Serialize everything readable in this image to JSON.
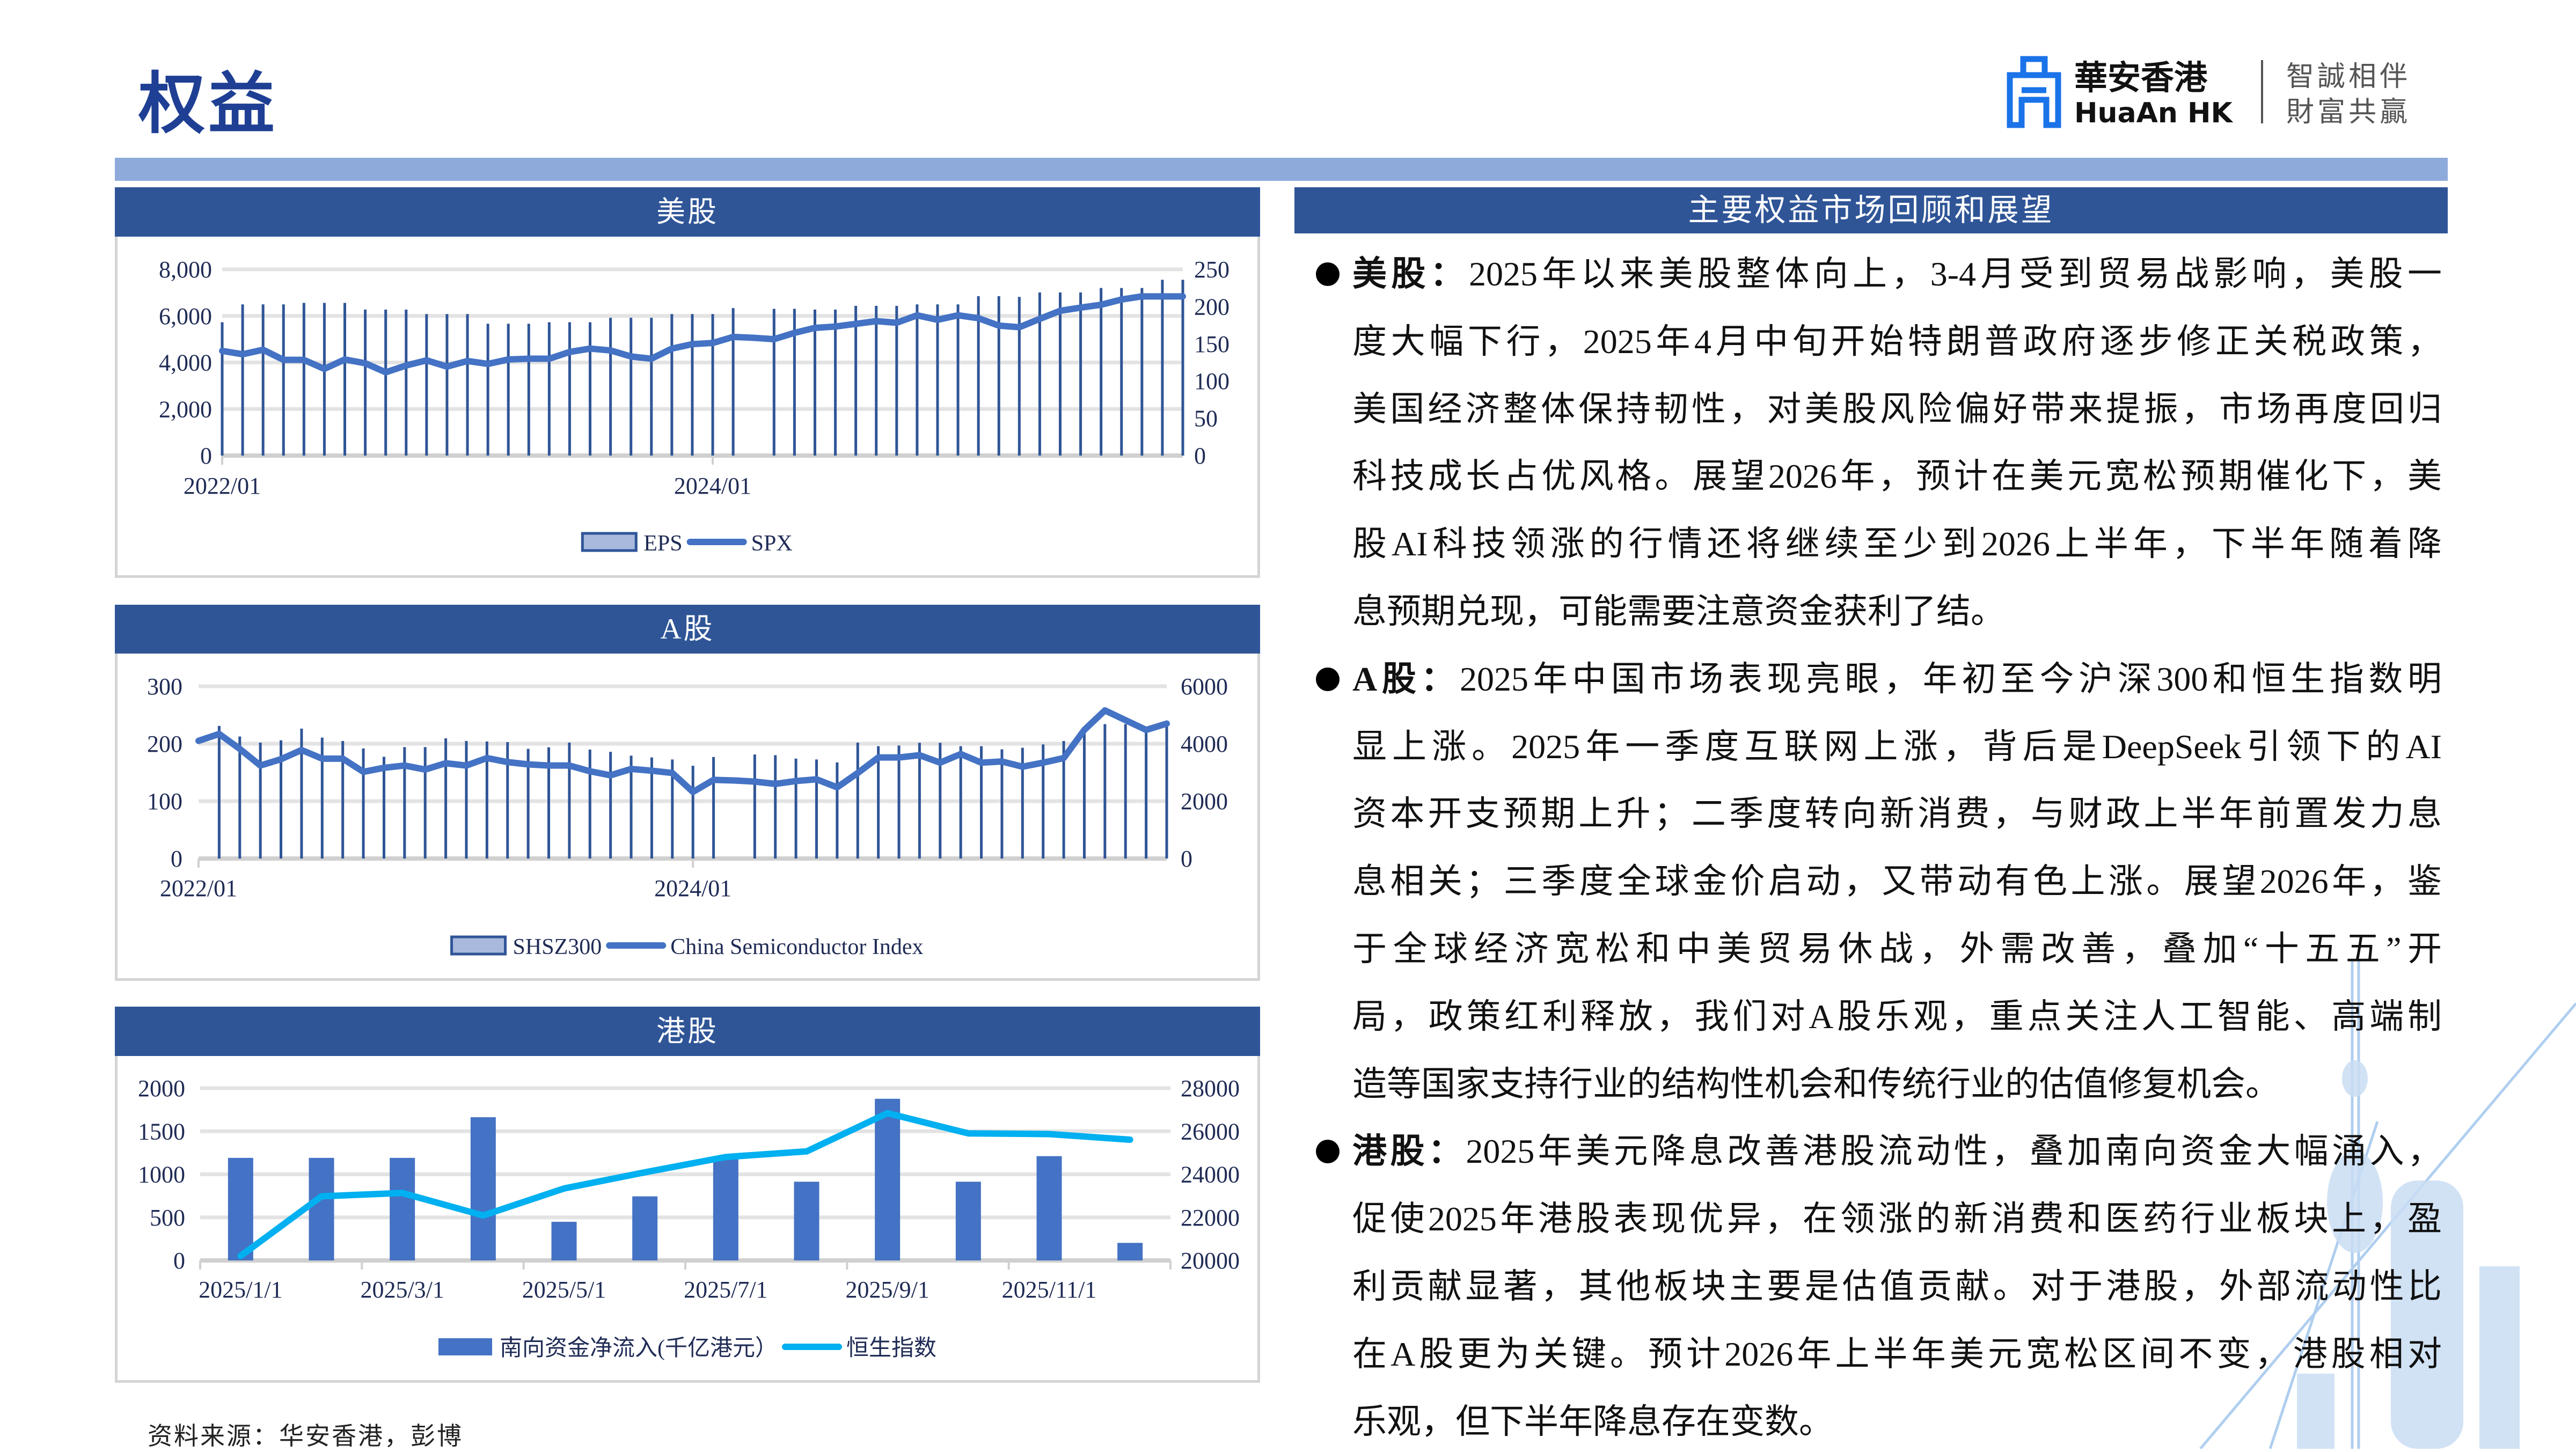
{
  "page": {
    "title": "权益",
    "source": "资料来源：华安香港，彭博"
  },
  "logo": {
    "name_cn": "華安香港",
    "name_en": "HuaAn HK",
    "slogan_line1": "智誠相伴",
    "slogan_line2": "財富共贏",
    "brand_color": "#1a73e8"
  },
  "colors": {
    "header": "#2f5597",
    "topbar": "#8eaadb",
    "bar": "#4472c4",
    "line": "#4472c4",
    "hsi_line": "#00b0f0",
    "bar_light": "#a9b9dd"
  },
  "panels": {
    "us": "美股",
    "a": "A股",
    "hk": "港股"
  },
  "commentary": {
    "heading": "主要权益市场回顾和展望",
    "us": {
      "label": "美股：",
      "lines": [
        "2025年以来美股整体向上，3-4月受到贸易战影响，美股一",
        "度大幅下行，2025年4月中旬开始特朗普政府逐步修正关税政策，",
        "美国经济整体保持韧性，对美股风险偏好带来提振，市场再度回归",
        "科技成长占优风格。展望2026年，预计在美元宽松预期催化下，美",
        "股AI科技领涨的行情还将继续至少到2026上半年，下半年随着降",
        "息预期兑现，可能需要注意资金获利了结。"
      ]
    },
    "a": {
      "label": "A股：",
      "lines": [
        "2025年中国市场表现亮眼，年初至今沪深300和恒生指数明",
        "显上涨。2025年一季度互联网上涨，背后是DeepSeek引领下的AI",
        "资本开支预期上升；二季度转向新消费，与财政上半年前置发力息",
        "息相关；三季度全球金价启动，又带动有色上涨。展望2026年，鉴",
        "于全球经济宽松和中美贸易休战，外需改善，叠加“十五五”开",
        "局，政策红利释放，我们对A股乐观，重点关注人工智能、高端制",
        "造等国家支持行业的结构性机会和传统行业的估值修复机会。"
      ]
    },
    "hk": {
      "label": "港股：",
      "lines": [
        "2025年美元降息改善港股流动性，叠加南向资金大幅涌入，",
        "促使2025年港股表现优异，在领涨的新消费和医药行业板块上，盈",
        "利贡献显著，其他板块主要是估值贡献。对于港股，外部流动性比",
        "在A股更为关键。预计2026年上半年美元宽松区间不变，港股相对",
        "乐观，但下半年降息存在变数。"
      ]
    }
  },
  "chart_data": [
    {
      "type": "bar+line",
      "x": [
        "2022/01",
        "2022/02",
        "2022/03",
        "2022/04",
        "2022/05",
        "2022/06",
        "2022/07",
        "2022/08",
        "2022/09",
        "2022/10",
        "2022/11",
        "2022/12",
        "2023/01",
        "2023/02",
        "2023/03",
        "2023/04",
        "2023/05",
        "2023/06",
        "2023/07",
        "2023/08",
        "2023/09",
        "2023/10",
        "2023/11",
        "2023/12",
        "2024/01",
        "2024/02",
        "2024/03",
        "2024/04",
        "2024/05",
        "2024/06",
        "2024/07",
        "2024/08",
        "2024/09",
        "2024/10",
        "2024/11",
        "2024/12",
        "2025/01",
        "2025/02",
        "2025/03",
        "2025/04",
        "2025/05",
        "2025/06",
        "2025/07",
        "2025/08",
        "2025/09",
        "2025/10",
        "2025/11",
        "2025/12"
      ],
      "x_tick_labels": [
        "2022/01",
        "2024/01"
      ],
      "y_left": {
        "range": [
          0,
          8000
        ],
        "ticks": [
          "0",
          "2,000",
          "4,000",
          "6,000",
          "8,000"
        ]
      },
      "y_right": {
        "range": [
          0,
          250
        ],
        "ticks": [
          "0",
          "50",
          "100",
          "150",
          "200",
          "250"
        ]
      },
      "grid": true,
      "legend_position": "bottom",
      "series": [
        {
          "name": "EPS",
          "kind": "bar",
          "axis": "right",
          "values": [
            179,
            203,
            203,
            203,
            205,
            205,
            205,
            196,
            196,
            196,
            190,
            190,
            190,
            177,
            177,
            177,
            179,
            179,
            179,
            185,
            185,
            185,
            190,
            190,
            190,
            198,
            null,
            197,
            197,
            196,
            196,
            201,
            201,
            201,
            203,
            203,
            203,
            214,
            214,
            213,
            219,
            219,
            219,
            225,
            225,
            225,
            236,
            236
          ]
        },
        {
          "name": "SPX",
          "kind": "line",
          "axis": "left",
          "values": [
            4498,
            4353,
            4547,
            4111,
            4111,
            3724,
            4130,
            3966,
            3579,
            3869,
            4092,
            3821,
            4063,
            3937,
            4130,
            4160,
            4160,
            4450,
            4595,
            4517,
            4256,
            4160,
            4595,
            4788,
            4837,
            5098,
            5059,
            5001,
            5272,
            5485,
            5543,
            5659,
            5775,
            5707,
            6027,
            5833,
            6027,
            5901,
            5582,
            5514,
            5872,
            6220,
            6356,
            6481,
            6704,
            6839,
            6839,
            6839
          ]
        }
      ]
    },
    {
      "type": "bar+line",
      "x": [
        "2022/01",
        "2022/02",
        "2022/03",
        "2022/04",
        "2022/05",
        "2022/06",
        "2022/07",
        "2022/08",
        "2022/09",
        "2022/10",
        "2022/11",
        "2022/12",
        "2023/01",
        "2023/02",
        "2023/03",
        "2023/04",
        "2023/05",
        "2023/06",
        "2023/07",
        "2023/08",
        "2023/09",
        "2023/10",
        "2023/11",
        "2023/12",
        "2024/01",
        "2024/02",
        "2024/03",
        "2024/04",
        "2024/05",
        "2024/06",
        "2024/07",
        "2024/08",
        "2024/09",
        "2024/10",
        "2024/11",
        "2024/12",
        "2025/01",
        "2025/02",
        "2025/03",
        "2025/04",
        "2025/05",
        "2025/06",
        "2025/07",
        "2025/08",
        "2025/09",
        "2025/10",
        "2025/11",
        "2025/12"
      ],
      "x_tick_labels": [
        "2022/01",
        "2024/01"
      ],
      "y_left": {
        "range": [
          0,
          300
        ],
        "ticks": [
          "0",
          "100",
          "200",
          "300"
        ]
      },
      "y_right": {
        "range": [
          0,
          6000
        ],
        "ticks": [
          "0",
          "2000",
          "4000",
          "6000"
        ]
      },
      "grid": true,
      "legend_position": "bottom",
      "series": [
        {
          "name": "SHSZ300",
          "kind": "bar",
          "axis": "right",
          "values": [
            null,
            4620,
            4251,
            4039,
            4118,
            4525,
            4212,
            4094,
            3835,
            3545,
            3882,
            3882,
            4188,
            4094,
            4078,
            4055,
            3820,
            3875,
            4039,
            3796,
            3718,
            3584,
            3522,
            3451,
            3231,
            3537,
            null,
            3624,
            3600,
            3482,
            3451,
            3349,
            4039,
            3914,
            3937,
            4031,
            4031,
            3914,
            3914,
            3804,
            3859,
            3976,
            4094,
            4510,
            4682,
            4682,
            4541,
            4682
          ]
        },
        {
          "name": "China Semiconductor Index",
          "kind": "line",
          "axis": "left",
          "values": [
            205,
            217,
            191,
            162,
            173,
            189,
            174,
            174,
            151,
            158,
            162,
            155,
            166,
            162,
            175,
            168,
            164,
            162,
            162,
            152,
            145,
            156,
            153,
            149,
            116,
            137,
            136,
            134,
            130,
            135,
            138,
            124,
            149,
            176,
            176,
            180,
            167,
            182,
            167,
            169,
            160,
            167,
            175,
            224,
            258,
            241,
            224,
            235
          ]
        }
      ]
    },
    {
      "type": "bar+line",
      "x": [
        "2025/1/1",
        "2025/2/1",
        "2025/3/1",
        "2025/4/1",
        "2025/5/1",
        "2025/6/1",
        "2025/7/1",
        "2025/8/1",
        "2025/9/1",
        "2025/10/1",
        "2025/11/1",
        "2025/12/1"
      ],
      "x_tick_labels": [
        "2025/1/1",
        "2025/3/1",
        "2025/5/1",
        "2025/7/1",
        "2025/9/1",
        "2025/11/1"
      ],
      "y_left": {
        "range": [
          0,
          2000
        ],
        "ticks": [
          "0",
          "500",
          "1000",
          "1500",
          "2000"
        ]
      },
      "y_right": {
        "range": [
          20000,
          28000
        ],
        "ticks": [
          "20000",
          "22000",
          "24000",
          "26000",
          "28000"
        ]
      },
      "grid": true,
      "legend_position": "bottom",
      "series": [
        {
          "name": "南向资金净流入(千亿港元）",
          "kind": "bar",
          "axis": "left",
          "values": [
            1191,
            1191,
            1191,
            1663,
            449,
            744,
            1180,
            914,
            1877,
            914,
            1211,
            204
          ]
        },
        {
          "name": "恒生指数",
          "kind": "line",
          "axis": "right",
          "values": [
            20209,
            22977,
            23133,
            22089,
            23342,
            24094,
            24804,
            25065,
            26841,
            25901,
            25870,
            25608
          ]
        }
      ]
    }
  ]
}
